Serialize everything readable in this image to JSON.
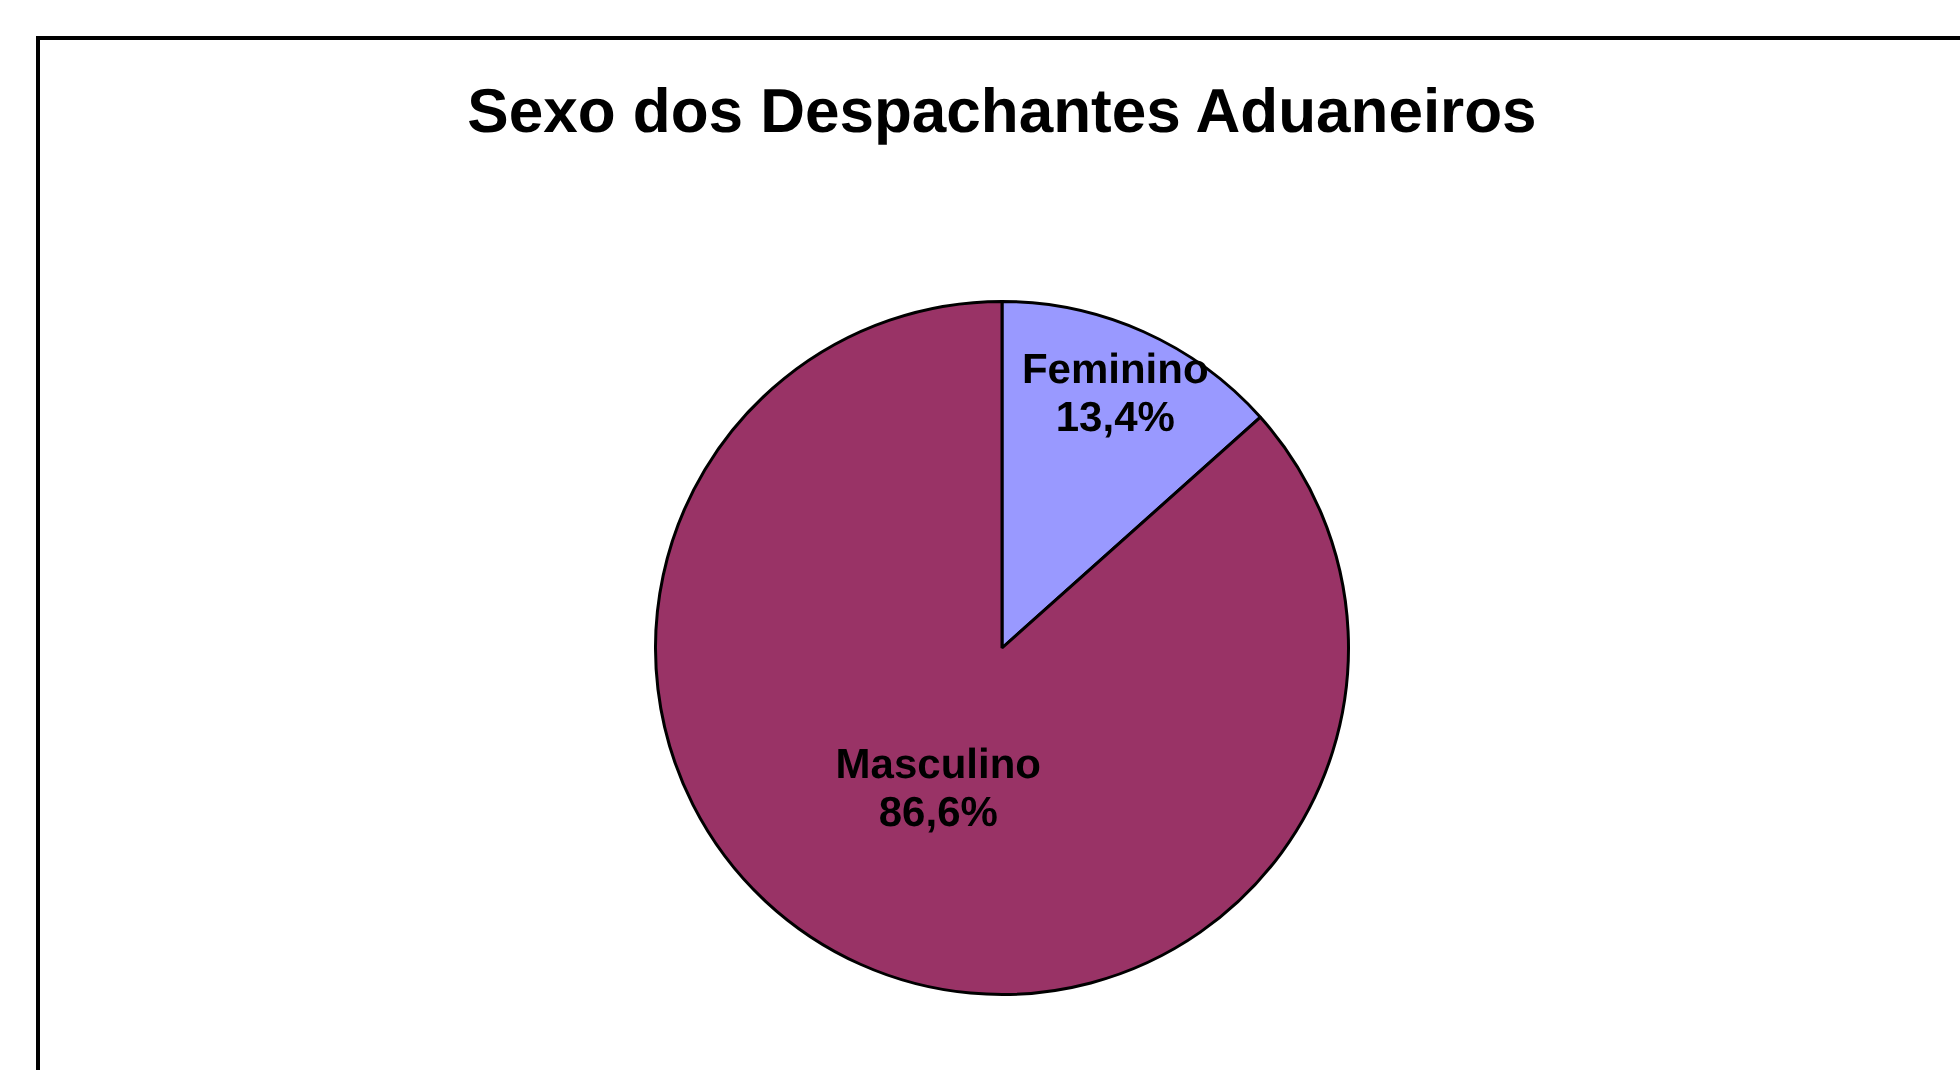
{
  "chart_data": {
    "type": "pie",
    "title": "Sexo dos Despachantes Aduaneiros",
    "categories": [
      "Feminino",
      "Masculino"
    ],
    "values": [
      13.4,
      86.6
    ],
    "value_labels": [
      "13,4%",
      "86,6%"
    ],
    "colors": [
      "#9999ff",
      "#993366"
    ],
    "legend": false
  }
}
